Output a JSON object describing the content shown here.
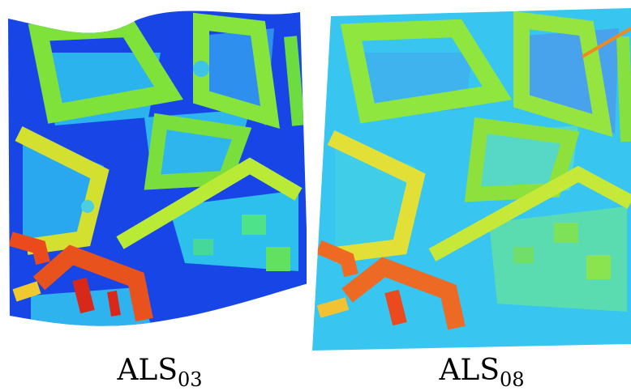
{
  "panels": [
    {
      "id": "als03",
      "label_base": "ALS",
      "label_sub": "03",
      "colormap": "jet",
      "colors": {
        "ground": "#1747e6",
        "street": "#1f5af0",
        "courtyard": "#39c6f0",
        "roof_mid": "#8ce63c",
        "roof_high": "#f2d630",
        "roof_top": "#e8401a"
      }
    },
    {
      "id": "als08",
      "label_base": "ALS",
      "label_sub": "08",
      "colormap": "jet",
      "colors": {
        "ground": "#35c8f0",
        "street": "#3fd0f2",
        "courtyard": "#52d8d8",
        "roof_mid": "#9ce640",
        "roof_high": "#e8e038",
        "roof_top": "#ec5420"
      }
    }
  ]
}
